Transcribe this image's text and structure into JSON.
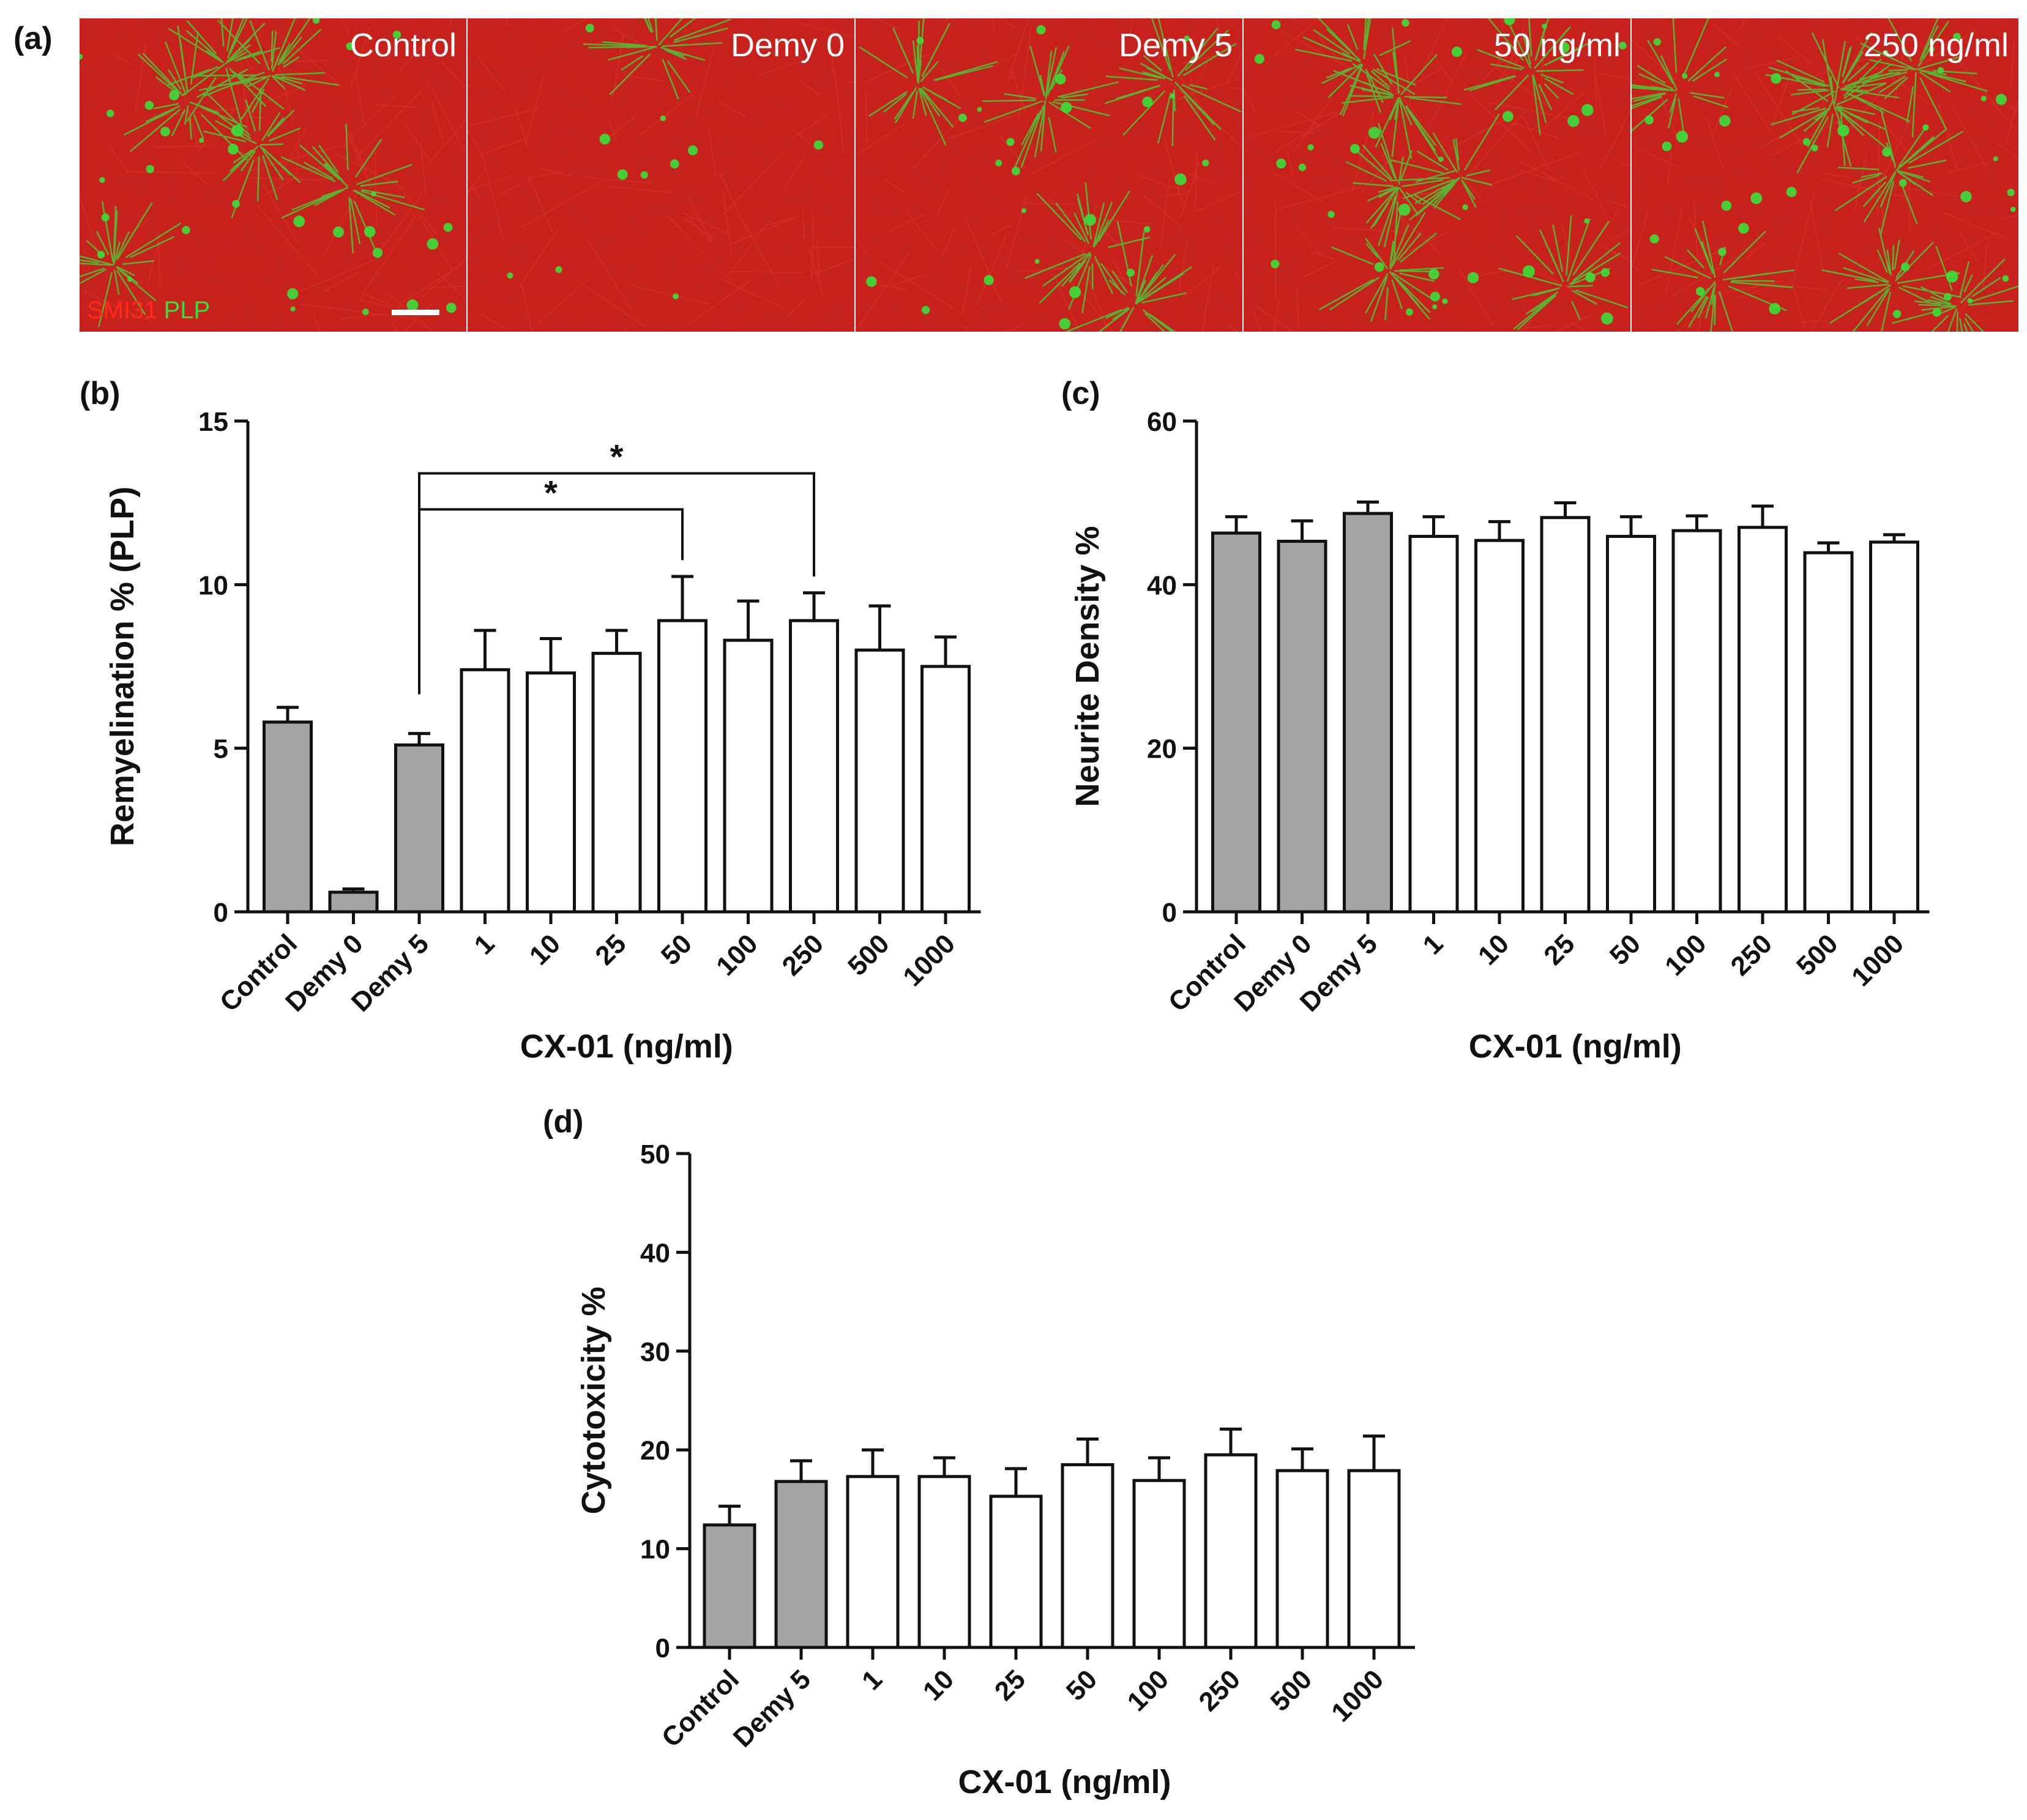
{
  "panels": {
    "a": {
      "label": "(a)",
      "images": [
        {
          "label": "Control"
        },
        {
          "label": "Demy 0"
        },
        {
          "label": "Demy 5"
        },
        {
          "label": "50 ng/ml"
        },
        {
          "label": "250 ng/ml"
        }
      ],
      "stain_red": "SMI31",
      "stain_green": "PLP",
      "colors": {
        "red": "#c8201a",
        "green": "#38e03a",
        "red_text": "#ff2a1a"
      }
    }
  },
  "chart_data": [
    {
      "id": "b",
      "panel_label": "(b)",
      "type": "bar",
      "ylabel": "Remyelination % (PLP)",
      "xlabel": "CX-01 (ng/ml)",
      "ylim": [
        0,
        15
      ],
      "yticks": [
        0,
        5,
        10,
        15
      ],
      "categories": [
        "Control",
        "Demy 0",
        "Demy 5",
        "1",
        "10",
        "25",
        "50",
        "100",
        "250",
        "500",
        "1000"
      ],
      "values": [
        5.8,
        0.6,
        5.1,
        7.4,
        7.3,
        7.9,
        8.9,
        8.3,
        8.9,
        8.0,
        7.5
      ],
      "errors": [
        0.45,
        0.1,
        0.35,
        1.2,
        1.05,
        0.7,
        1.35,
        1.2,
        0.85,
        1.35,
        0.9
      ],
      "gray_count": 3,
      "significance": [
        {
          "from": "Demy 5",
          "to": "50",
          "label": "*"
        },
        {
          "from": "Demy 5",
          "to": "250",
          "label": "*"
        }
      ]
    },
    {
      "id": "c",
      "panel_label": "(c)",
      "type": "bar",
      "ylabel": "Neurite Density %",
      "xlabel": "CX-01 (ng/ml)",
      "ylim": [
        0,
        60
      ],
      "yticks": [
        0,
        20,
        40,
        60
      ],
      "categories": [
        "Control",
        "Demy 0",
        "Demy 5",
        "1",
        "10",
        "25",
        "50",
        "100",
        "250",
        "500",
        "1000"
      ],
      "values": [
        46.3,
        45.3,
        48.7,
        45.9,
        45.4,
        48.2,
        45.9,
        46.6,
        47.0,
        43.9,
        45.2
      ],
      "errors": [
        2.0,
        2.5,
        1.4,
        2.4,
        2.3,
        1.8,
        2.4,
        1.8,
        2.6,
        1.2,
        0.9
      ],
      "gray_count": 3
    },
    {
      "id": "d",
      "panel_label": "(d)",
      "type": "bar",
      "ylabel": "Cytotoxicity %",
      "xlabel": "CX-01 (ng/ml)",
      "ylim": [
        0,
        50
      ],
      "yticks": [
        0,
        10,
        20,
        30,
        40,
        50
      ],
      "categories": [
        "Control",
        "Demy 5",
        "1",
        "10",
        "25",
        "50",
        "100",
        "250",
        "500",
        "1000"
      ],
      "values": [
        12.4,
        16.8,
        17.3,
        17.3,
        15.3,
        18.5,
        16.9,
        19.5,
        17.9,
        17.9
      ],
      "errors": [
        1.9,
        2.1,
        2.7,
        1.9,
        2.8,
        2.6,
        2.3,
        2.6,
        2.2,
        3.5
      ],
      "gray_count": 2
    }
  ]
}
